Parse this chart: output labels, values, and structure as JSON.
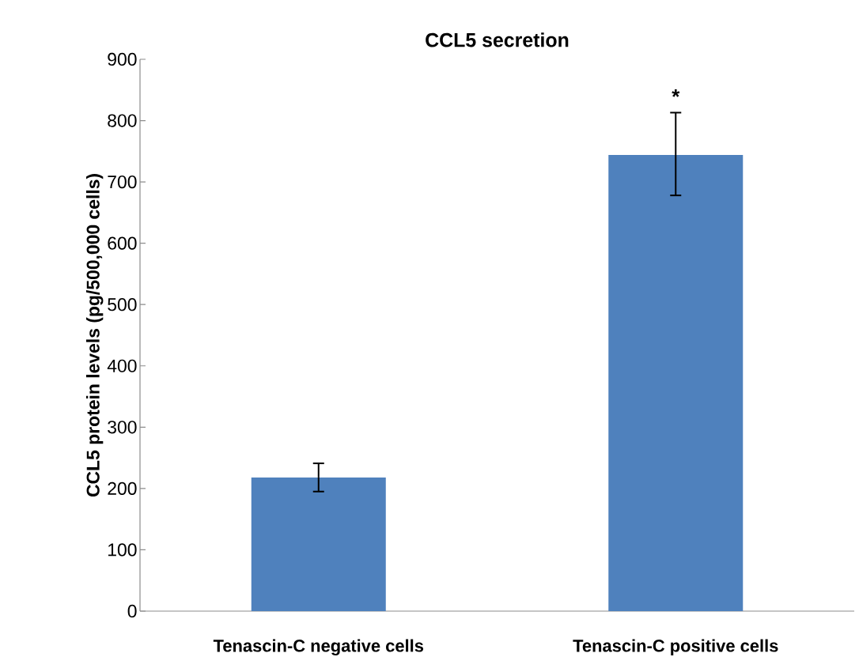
{
  "chart_data": {
    "type": "bar",
    "title": "CCL5 secretion",
    "ylabel": "CCL5 protein levels (pg/500,000 cells)",
    "categories": [
      "Tenascin-C negative cells",
      "Tenascin-C positive cells"
    ],
    "values": [
      218,
      744
    ],
    "errors": [
      [
        195,
        241
      ],
      [
        678,
        813
      ]
    ],
    "color": "#4f81bd",
    "ylim": [
      0,
      900
    ],
    "yticks": [
      0,
      100,
      200,
      300,
      400,
      500,
      600,
      700,
      800,
      900
    ],
    "grid": false,
    "annotations": [
      "*"
    ]
  }
}
